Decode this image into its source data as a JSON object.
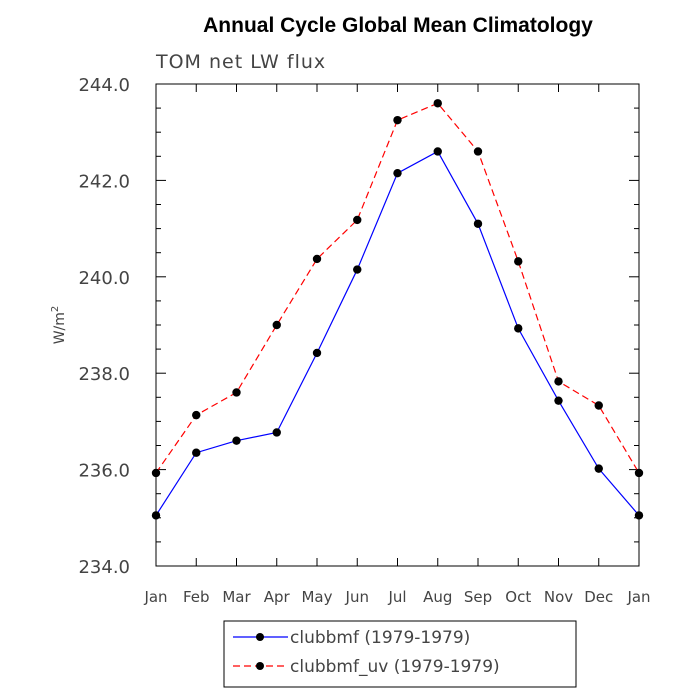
{
  "chart_data": {
    "type": "line",
    "title": "Annual Cycle Global Mean Climatology",
    "subtitle": "TOM net LW flux",
    "xlabel": "",
    "ylabel": "W/m",
    "ylabel_sup": "2",
    "ylim": [
      234.0,
      244.0
    ],
    "yticks": [
      234.0,
      236.0,
      238.0,
      240.0,
      242.0,
      244.0
    ],
    "ytick_labels": [
      "234.0",
      "236.0",
      "238.0",
      "240.0",
      "242.0",
      "244.0"
    ],
    "categories": [
      "Jan",
      "Feb",
      "Mar",
      "Apr",
      "May",
      "Jun",
      "Jul",
      "Aug",
      "Sep",
      "Oct",
      "Nov",
      "Dec",
      "Jan"
    ],
    "series": [
      {
        "name": "clubbmf (1979-1979)",
        "color": "#0000ff",
        "dash": "solid",
        "values": [
          235.05,
          236.35,
          236.6,
          236.77,
          238.42,
          240.15,
          242.15,
          242.6,
          241.1,
          238.93,
          237.43,
          236.02,
          235.05
        ]
      },
      {
        "name": "clubbmf_uv (1979-1979)",
        "color": "#ff0000",
        "dash": "dashed",
        "values": [
          235.93,
          237.13,
          237.6,
          239.0,
          240.37,
          241.18,
          243.25,
          243.6,
          242.6,
          240.32,
          237.83,
          237.33,
          235.93
        ]
      }
    ],
    "legend_position": "bottom",
    "grid": false
  }
}
